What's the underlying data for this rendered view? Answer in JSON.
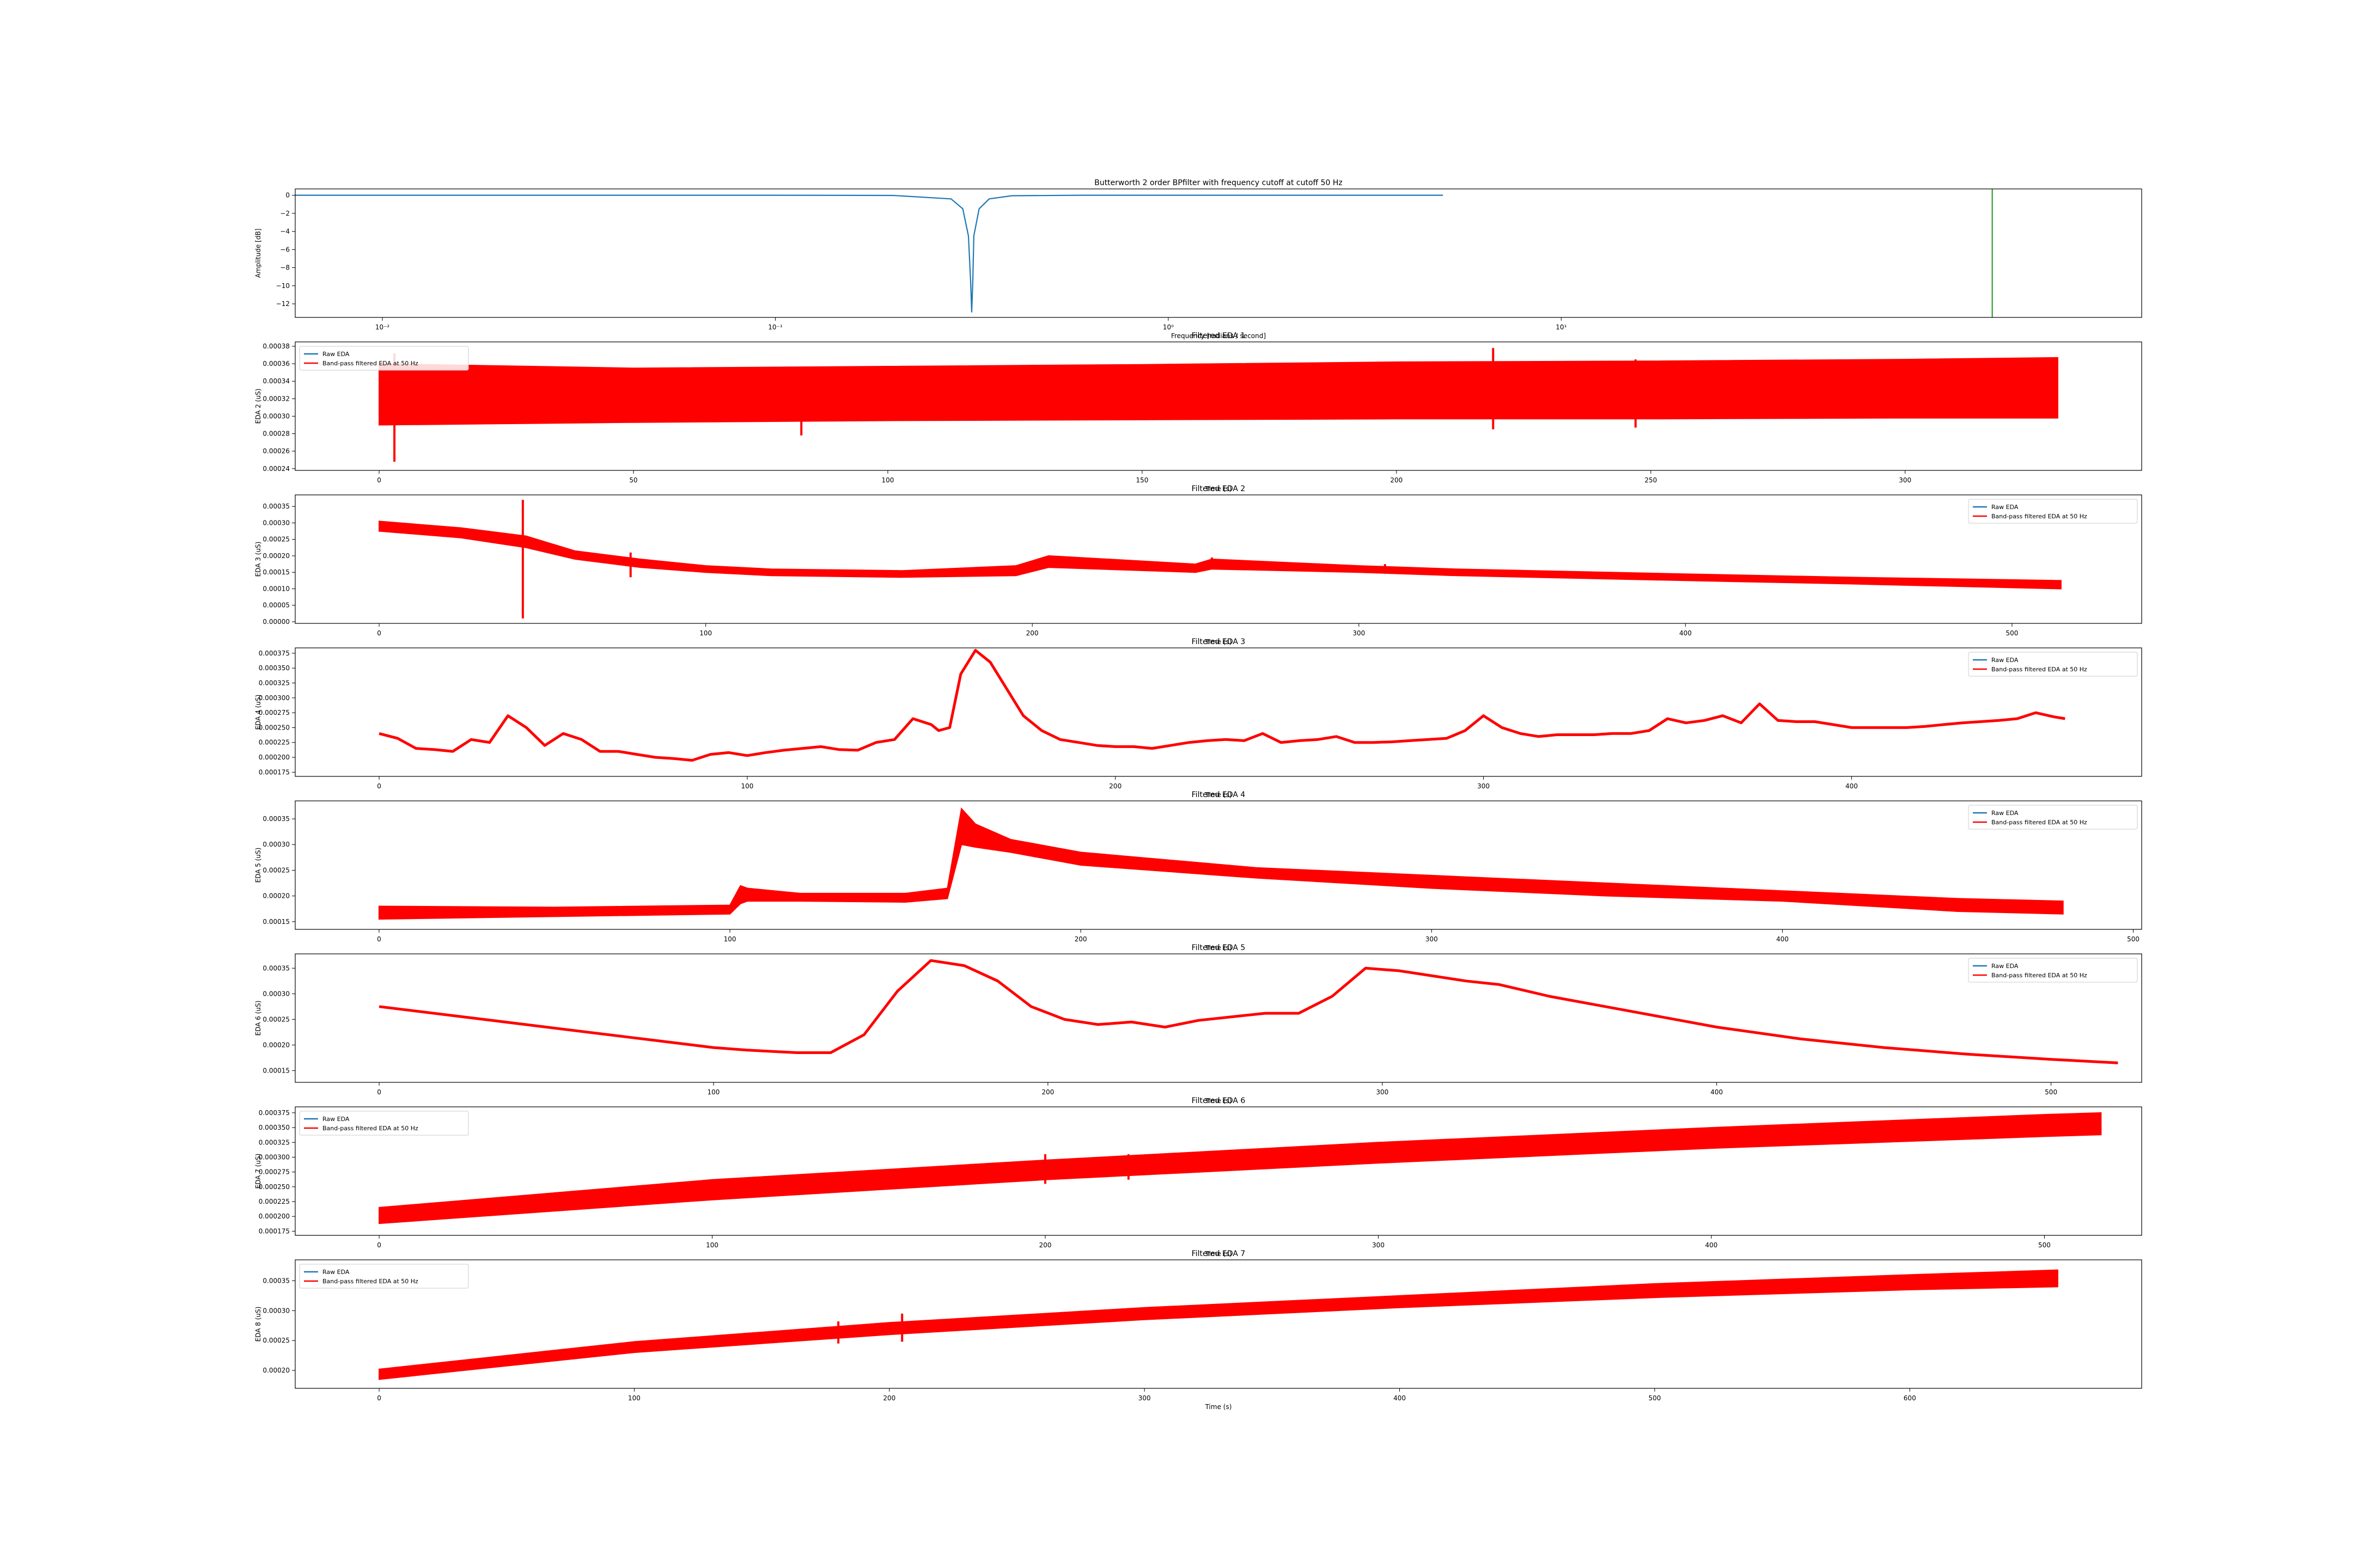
{
  "chart_data": [
    {
      "type": "line",
      "title": "Butterworth 2 order  BPfilter with frequency cutoff at cutoff 50 Hz",
      "xlabel": "Frequency [radians / second]",
      "ylabel": "Amplitude [dB]",
      "x_scale": "log",
      "xlim": [
        0.006,
        300
      ],
      "ylim": [
        -13.5,
        0.7
      ],
      "x_ticks": [
        0.01,
        0.1,
        1,
        10
      ],
      "x_tick_labels": [
        "10⁻²",
        "10⁻¹",
        "10⁰",
        "10¹"
      ],
      "y_ticks": [
        0,
        -2,
        -4,
        -6,
        -8,
        -10,
        -12
      ],
      "y_tick_labels": [
        "0",
        "−2",
        "−4",
        "−6",
        "−8",
        "−10",
        "−12"
      ],
      "grid": false,
      "series": [
        {
          "color": "#1f77b4",
          "x": [
            0.006,
            0.1,
            0.2,
            0.28,
            0.3,
            0.31,
            0.314,
            0.316,
            0.318,
            0.32,
            0.33,
            0.35,
            0.4,
            0.6,
            1,
            5
          ],
          "values": [
            0,
            0,
            -0.02,
            -0.4,
            -1.5,
            -4.5,
            -9.5,
            -12.9,
            -9.5,
            -4.5,
            -1.5,
            -0.4,
            -0.05,
            0,
            0,
            0
          ]
        },
        {
          "color": "#2ca02c",
          "x": [
            125,
            125
          ],
          "values": [
            -13.5,
            0.7
          ]
        }
      ]
    },
    {
      "type": "line",
      "title": "Filtered EDA 1",
      "xlabel": "Time (s)",
      "ylabel": "EDA 2 (uS)",
      "xlim": [
        -16.5,
        346.5
      ],
      "ylim": [
        0.000238,
        0.000385
      ],
      "x_ticks": [
        0,
        50,
        100,
        150,
        200,
        250,
        300
      ],
      "y_ticks": [
        0.00024,
        0.00026,
        0.00028,
        0.0003,
        0.00032,
        0.00034,
        0.00036,
        0.00038
      ],
      "y_tick_labels": [
        "0.00024",
        "0.00026",
        "0.00028",
        "0.00030",
        "0.00032",
        "0.00034",
        "0.00036",
        "0.00038"
      ],
      "legend": "top-left",
      "legend_entries": [
        {
          "label": "Raw EDA",
          "color": "#1f77b4"
        },
        {
          "label": "Band-pass filtered EDA at 50 Hz",
          "color": "#ff0000"
        }
      ],
      "series": [
        {
          "name": "Band-pass filtered EDA at 50 Hz",
          "color": "#ff0000",
          "x": [
            0,
            50,
            100,
            150,
            200,
            250,
            300,
            330
          ],
          "lower": [
            0.00029,
            0.000293,
            0.000295,
            0.000296,
            0.000297,
            0.000297,
            0.000298,
            0.000298
          ],
          "upper": [
            0.00036,
            0.000355,
            0.000357,
            0.000359,
            0.000362,
            0.000363,
            0.000365,
            0.000367
          ],
          "spikes": [
            [
              3,
              0.000248,
              0.000372
            ],
            [
              83,
              0.000278,
              0.000352
            ],
            [
              219,
              0.000285,
              0.000378
            ],
            [
              247,
              0.000287,
              0.000365
            ]
          ]
        }
      ]
    },
    {
      "type": "line",
      "title": "Filtered EDA 2",
      "xlabel": "Time (s)",
      "ylabel": "EDA 3 (uS)",
      "xlim": [
        -25.7,
        539.7
      ],
      "ylim": [
        -5e-06,
        0.000385
      ],
      "x_ticks": [
        0,
        100,
        200,
        300,
        400,
        500
      ],
      "y_ticks": [
        0,
        5e-05,
        0.0001,
        0.00015,
        0.0002,
        0.00025,
        0.0003,
        0.00035
      ],
      "y_tick_labels": [
        "0.00000",
        "0.00005",
        "0.00010",
        "0.00015",
        "0.00020",
        "0.00025",
        "0.00030",
        "0.00035"
      ],
      "legend": "top-right",
      "legend_entries": [
        {
          "label": "Raw EDA",
          "color": "#1f77b4"
        },
        {
          "label": "Band-pass filtered EDA at 50 Hz",
          "color": "#ff0000"
        }
      ],
      "series": [
        {
          "name": "Band-pass filtered EDA at 50 Hz",
          "color": "#ff0000",
          "x": [
            0,
            25,
            45,
            60,
            80,
            100,
            120,
            160,
            195,
            205,
            250,
            255,
            300,
            330,
            400,
            450,
            515
          ],
          "lower": [
            0.000275,
            0.000255,
            0.000225,
            0.00019,
            0.000165,
            0.00015,
            0.00014,
            0.000135,
            0.00014,
            0.000165,
            0.00015,
            0.00016,
            0.00015,
            0.00014,
            0.000125,
            0.000115,
            0.0001
          ],
          "upper": [
            0.000305,
            0.000285,
            0.00026,
            0.000215,
            0.00019,
            0.00017,
            0.00016,
            0.000155,
            0.00017,
            0.0002,
            0.000175,
            0.00019,
            0.00017,
            0.00016,
            0.000145,
            0.000135,
            0.000125
          ],
          "spikes": [
            [
              44,
              1e-05,
              0.00037
            ],
            [
              77,
              0.000135,
              0.00021
            ],
            [
              255,
              0.00016,
              0.000195
            ],
            [
              308,
              0.00015,
              0.000175
            ]
          ]
        }
      ]
    },
    {
      "type": "line",
      "title": "Filtered EDA 3",
      "xlabel": "Time (s)",
      "ylabel": "EDA 4 (uS)",
      "xlim": [
        -22.8,
        478.8
      ],
      "ylim": [
        0.000168,
        0.000384
      ],
      "x_ticks": [
        0,
        100,
        200,
        300,
        400
      ],
      "y_ticks": [
        0.000175,
        0.0002,
        0.000225,
        0.00025,
        0.000275,
        0.0003,
        0.000325,
        0.00035,
        0.000375
      ],
      "y_tick_labels": [
        "0.000175",
        "0.000200",
        "0.000225",
        "0.000250",
        "0.000275",
        "0.000300",
        "0.000325",
        "0.000350",
        "0.000375"
      ],
      "legend": "top-right",
      "legend_entries": [
        {
          "label": "Raw EDA",
          "color": "#1f77b4"
        },
        {
          "label": "Band-pass filtered EDA at 50 Hz",
          "color": "#ff0000"
        }
      ],
      "series": [
        {
          "name": "Band-pass filtered EDA at 50 Hz",
          "color": "#ff0000",
          "x": [
            0,
            5,
            10,
            15,
            20,
            25,
            30,
            35,
            40,
            45,
            50,
            55,
            60,
            65,
            70,
            75,
            80,
            85,
            90,
            95,
            100,
            105,
            110,
            115,
            120,
            125,
            130,
            135,
            140,
            145,
            150,
            152,
            155,
            158,
            162,
            166,
            170,
            175,
            180,
            185,
            190,
            195,
            200,
            205,
            210,
            215,
            220,
            225,
            230,
            235,
            240,
            245,
            250,
            255,
            260,
            265,
            270,
            275,
            280,
            285,
            290,
            295,
            300,
            305,
            310,
            315,
            320,
            325,
            330,
            335,
            340,
            345,
            350,
            355,
            360,
            365,
            370,
            375,
            380,
            385,
            390,
            395,
            400,
            405,
            410,
            415,
            420,
            425,
            430,
            435,
            440,
            445,
            450,
            455,
            458
          ],
          "values": [
            0.00024,
            0.000232,
            0.000215,
            0.000213,
            0.00021,
            0.00023,
            0.000225,
            0.00027,
            0.00025,
            0.00022,
            0.00024,
            0.00023,
            0.00021,
            0.00021,
            0.000205,
            0.0002,
            0.000198,
            0.000195,
            0.000205,
            0.000208,
            0.000203,
            0.000208,
            0.000212,
            0.000215,
            0.000218,
            0.000213,
            0.000212,
            0.000225,
            0.00023,
            0.000265,
            0.000255,
            0.000245,
            0.00025,
            0.00034,
            0.00038,
            0.00036,
            0.00032,
            0.00027,
            0.000245,
            0.00023,
            0.000225,
            0.00022,
            0.000218,
            0.000218,
            0.000215,
            0.00022,
            0.000225,
            0.000228,
            0.00023,
            0.000228,
            0.00024,
            0.000225,
            0.000228,
            0.00023,
            0.000235,
            0.000225,
            0.000225,
            0.000226,
            0.000228,
            0.00023,
            0.000232,
            0.000245,
            0.00027,
            0.00025,
            0.00024,
            0.000235,
            0.000238,
            0.000238,
            0.000238,
            0.00024,
            0.00024,
            0.000245,
            0.000265,
            0.000258,
            0.000262,
            0.00027,
            0.000258,
            0.00029,
            0.000262,
            0.00026,
            0.00026,
            0.000255,
            0.00025,
            0.00025,
            0.00025,
            0.00025,
            0.000252,
            0.000255,
            0.000258,
            0.00026,
            0.000262,
            0.000265,
            0.000275,
            0.000268,
            0.000265
          ]
        }
      ]
    },
    {
      "type": "line",
      "title": "Filtered EDA 4",
      "xlabel": "Time (s)",
      "ylabel": "EDA 5 (uS)",
      "xlim": [
        -23.9,
        502.4
      ],
      "ylim": [
        0.000135,
        0.000385
      ],
      "x_ticks": [
        0,
        100,
        200,
        300,
        400,
        500
      ],
      "y_ticks": [
        0.00015,
        0.0002,
        0.00025,
        0.0003,
        0.00035
      ],
      "y_tick_labels": [
        "0.00015",
        "0.00020",
        "0.00025",
        "0.00030",
        "0.00035"
      ],
      "legend": "top-right",
      "legend_entries": [
        {
          "label": "Raw EDA",
          "color": "#1f77b4"
        },
        {
          "label": "Band-pass filtered EDA at 50 Hz",
          "color": "#ff0000"
        }
      ],
      "series": [
        {
          "name": "Band-pass filtered EDA at 50 Hz",
          "color": "#ff0000",
          "x": [
            0,
            50,
            100,
            103,
            105,
            120,
            150,
            162,
            166,
            170,
            180,
            200,
            250,
            300,
            350,
            400,
            450,
            480
          ],
          "lower": [
            0.000155,
            0.00016,
            0.000165,
            0.000185,
            0.00019,
            0.00019,
            0.000188,
            0.000195,
            0.0003,
            0.000295,
            0.000285,
            0.00026,
            0.000235,
            0.000215,
            0.0002,
            0.00019,
            0.00017,
            0.000165
          ],
          "upper": [
            0.00018,
            0.000178,
            0.000182,
            0.00022,
            0.000215,
            0.000205,
            0.000205,
            0.000215,
            0.00037,
            0.00034,
            0.00031,
            0.000285,
            0.000255,
            0.00024,
            0.000225,
            0.00021,
            0.000195,
            0.00019
          ]
        }
      ]
    },
    {
      "type": "line",
      "title": "Filtered EDA 5",
      "xlabel": "Time (s)",
      "ylabel": "EDA 6 (uS)",
      "xlim": [
        -25.1,
        527.1
      ],
      "ylim": [
        0.000127,
        0.000378
      ],
      "x_ticks": [
        0,
        100,
        200,
        300,
        400,
        500
      ],
      "y_ticks": [
        0.00015,
        0.0002,
        0.00025,
        0.0003,
        0.00035
      ],
      "y_tick_labels": [
        "0.00015",
        "0.00020",
        "0.00025",
        "0.00030",
        "0.00035"
      ],
      "legend": "top-right",
      "legend_entries": [
        {
          "label": "Raw EDA",
          "color": "#1f77b4"
        },
        {
          "label": "Band-pass filtered EDA at 50 Hz",
          "color": "#ff0000"
        }
      ],
      "series": [
        {
          "name": "Band-pass filtered EDA at 50 Hz",
          "color": "#ff0000",
          "x": [
            0,
            25,
            50,
            75,
            100,
            110,
            125,
            135,
            145,
            155,
            165,
            175,
            185,
            195,
            205,
            215,
            225,
            235,
            245,
            255,
            265,
            275,
            285,
            295,
            305,
            315,
            325,
            335,
            350,
            375,
            400,
            425,
            450,
            475,
            500,
            520
          ],
          "values": [
            0.000275,
            0.000255,
            0.000235,
            0.000215,
            0.000195,
            0.00019,
            0.000185,
            0.000185,
            0.00022,
            0.000305,
            0.000365,
            0.000355,
            0.000325,
            0.000275,
            0.00025,
            0.00024,
            0.000245,
            0.000235,
            0.000248,
            0.000255,
            0.000262,
            0.000262,
            0.000295,
            0.00035,
            0.000345,
            0.000335,
            0.000325,
            0.000318,
            0.000295,
            0.000265,
            0.000235,
            0.000212,
            0.000195,
            0.000182,
            0.000172,
            0.000165
          ]
        }
      ]
    },
    {
      "type": "line",
      "title": "Filtered EDA 6",
      "xlabel": "Time (s)",
      "ylabel": "EDA 7 (uS)",
      "xlim": [
        -25.2,
        529.2
      ],
      "ylim": [
        0.000168,
        0.000385
      ],
      "x_ticks": [
        0,
        100,
        200,
        300,
        400,
        500
      ],
      "y_ticks": [
        0.000175,
        0.0002,
        0.000225,
        0.00025,
        0.000275,
        0.0003,
        0.000325,
        0.00035,
        0.000375
      ],
      "y_tick_labels": [
        "0.000175",
        "0.000200",
        "0.000225",
        "0.000250",
        "0.000275",
        "0.000300",
        "0.000325",
        "0.000350",
        "0.000375"
      ],
      "legend": "top-left",
      "legend_entries": [
        {
          "label": "Raw EDA",
          "color": "#1f77b4"
        },
        {
          "label": "Band-pass filtered EDA at 50 Hz",
          "color": "#ff0000"
        }
      ],
      "series": [
        {
          "name": "Band-pass filtered EDA at 50 Hz",
          "color": "#ff0000",
          "x": [
            0,
            100,
            200,
            300,
            400,
            500,
            517
          ],
          "lower": [
            0.000188,
            0.000228,
            0.000262,
            0.00029,
            0.000315,
            0.000335,
            0.000338
          ],
          "upper": [
            0.000215,
            0.000262,
            0.000295,
            0.000325,
            0.00035,
            0.000372,
            0.000375
          ],
          "spikes": [
            [
              200,
              0.000255,
              0.000305
            ],
            [
              225,
              0.000262,
              0.000305
            ]
          ]
        }
      ]
    },
    {
      "type": "line",
      "title": "Filtered EDA 7",
      "xlabel": "Time (s)",
      "ylabel": "EDA 8 (uS)",
      "xlim": [
        -32.9,
        690.9
      ],
      "ylim": [
        0.00017,
        0.000385
      ],
      "x_ticks": [
        0,
        100,
        200,
        300,
        400,
        500,
        600
      ],
      "y_ticks": [
        0.0002,
        0.00025,
        0.0003,
        0.00035
      ],
      "y_tick_labels": [
        "0.00020",
        "0.00025",
        "0.00030",
        "0.00035"
      ],
      "legend": "top-left",
      "legend_entries": [
        {
          "label": "Raw EDA",
          "color": "#1f77b4"
        },
        {
          "label": "Band-pass filtered EDA at 50 Hz",
          "color": "#ff0000"
        }
      ],
      "series": [
        {
          "name": "Band-pass filtered EDA at 50 Hz",
          "color": "#ff0000",
          "x": [
            0,
            100,
            200,
            300,
            400,
            500,
            600,
            658
          ],
          "lower": [
            0.000185,
            0.00023,
            0.00026,
            0.000285,
            0.000305,
            0.000322,
            0.000335,
            0.00034
          ],
          "upper": [
            0.000202,
            0.000248,
            0.00028,
            0.000305,
            0.000325,
            0.000345,
            0.00036,
            0.000368
          ],
          "spikes": [
            [
              180,
              0.000245,
              0.000282
            ],
            [
              205,
              0.000248,
              0.000295
            ]
          ]
        }
      ]
    }
  ]
}
